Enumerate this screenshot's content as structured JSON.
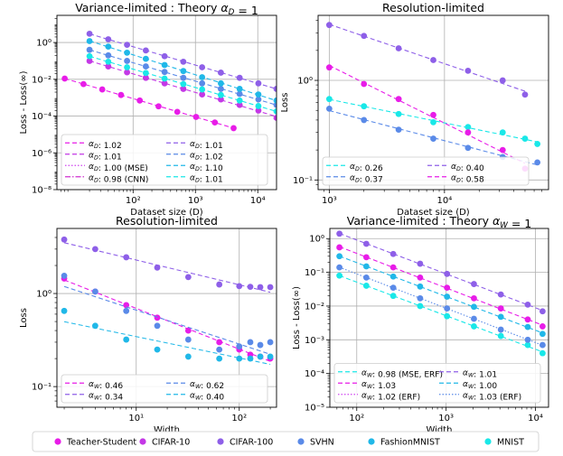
{
  "chart_data": [
    {
      "type": "scatter",
      "title": "Variance-limited : Theory α_D = 1",
      "xlabel": "Dataset size (D)",
      "ylabel": "Loss - Loss(∞)",
      "xlog": true,
      "ylog": true,
      "xlim": [
        6,
        20000
      ],
      "ylim": [
        1e-08,
        30
      ],
      "xticks": [
        {
          "v": 100,
          "l": "10²"
        },
        {
          "v": 1000,
          "l": "10³"
        },
        {
          "v": 10000,
          "l": "10⁴"
        }
      ],
      "yticks": [
        {
          "v": 1e-08,
          "l": "10⁻⁸"
        },
        {
          "v": 1e-06,
          "l": "10⁻⁶"
        },
        {
          "v": 0.0001,
          "l": "10⁻⁴"
        },
        {
          "v": 0.01,
          "l": "10⁻²"
        },
        {
          "v": 1,
          "l": "10⁰"
        }
      ],
      "grid": true,
      "legend_loc": "lower-left",
      "legend_cols": 2,
      "series": [
        {
          "name": "α_D: 1.02",
          "color": "#e81ce8",
          "dash": "5,3",
          "points": [
            [
              8,
              0.011
            ],
            [
              16,
              0.0055
            ],
            [
              32,
              0.0028
            ],
            [
              64,
              0.0014
            ],
            [
              128,
              0.0007
            ],
            [
              256,
              0.00034
            ],
            [
              512,
              0.00017
            ],
            [
              1024,
              9e-05
            ],
            [
              2048,
              4.5e-05
            ],
            [
              4096,
              2.2e-05
            ]
          ]
        },
        {
          "name": "α_D: 1.01",
          "color": "#c438e6",
          "dash": "5,3",
          "points": [
            [
              20,
              0.1
            ],
            [
              40,
              0.05
            ],
            [
              80,
              0.024
            ],
            [
              160,
              0.012
            ],
            [
              320,
              0.006
            ],
            [
              640,
              0.003
            ],
            [
              1280,
              0.0015
            ],
            [
              2560,
              0.0008
            ],
            [
              5120,
              0.0004
            ],
            [
              10240,
              0.0002
            ],
            [
              20000,
              8e-05
            ]
          ]
        },
        {
          "name": "α_D: 1.00 (MSE)",
          "color": "#d046f0",
          "dash": "1.5,2",
          "points": []
        },
        {
          "name": "α_D: 0.98 (CNN)",
          "color": "#d030d0",
          "dash": "6,2,1.5,2",
          "points": []
        },
        {
          "name": "α_D: 1.01",
          "color": "#8e5fe8",
          "dash": "5,3",
          "points": [
            [
              20,
              3
            ],
            [
              40,
              1.5
            ],
            [
              80,
              0.75
            ],
            [
              160,
              0.37
            ],
            [
              320,
              0.18
            ],
            [
              640,
              0.09
            ],
            [
              1280,
              0.045
            ],
            [
              2560,
              0.023
            ],
            [
              5120,
              0.012
            ],
            [
              10240,
              0.006
            ],
            [
              20000,
              0.003
            ]
          ]
        },
        {
          "name": "α_D: 1.02",
          "color": "#5a8ae8",
          "dash": "5,3",
          "points": [
            [
              20,
              0.4
            ],
            [
              40,
              0.2
            ],
            [
              80,
              0.1
            ],
            [
              160,
              0.05
            ],
            [
              320,
              0.025
            ],
            [
              640,
              0.012
            ],
            [
              1280,
              0.006
            ],
            [
              2560,
              0.003
            ],
            [
              5120,
              0.0016
            ],
            [
              10240,
              0.0008
            ],
            [
              20000,
              0.0004
            ]
          ]
        },
        {
          "name": "α_D: 1.10",
          "color": "#20b8e8",
          "dash": "5,3",
          "points": [
            [
              20,
              1.2
            ],
            [
              40,
              0.6
            ],
            [
              80,
              0.28
            ],
            [
              160,
              0.13
            ],
            [
              320,
              0.06
            ],
            [
              640,
              0.028
            ],
            [
              1280,
              0.013
            ],
            [
              2560,
              0.006
            ],
            [
              5120,
              0.003
            ],
            [
              10240,
              0.0015
            ],
            [
              20000,
              0.0007
            ]
          ]
        },
        {
          "name": "α_D: 1.01",
          "color": "#19e8e8",
          "dash": "5,3",
          "points": [
            [
              20,
              0.18
            ],
            [
              40,
              0.09
            ],
            [
              80,
              0.045
            ],
            [
              160,
              0.022
            ],
            [
              320,
              0.011
            ],
            [
              640,
              0.0055
            ],
            [
              1280,
              0.0028
            ],
            [
              2560,
              0.0014
            ],
            [
              5120,
              0.0007
            ],
            [
              10240,
              0.00035
            ],
            [
              20000,
              0.00018
            ]
          ]
        }
      ]
    },
    {
      "type": "scatter",
      "title": "Resolution-limited",
      "xlabel": "Dataset size (D)",
      "ylabel": "Loss",
      "xlog": true,
      "ylog": true,
      "xlim": [
        800,
        80000
      ],
      "ylim": [
        0.08,
        4.5
      ],
      "xticks": [
        {
          "v": 1000,
          "l": "10³"
        },
        {
          "v": 10000,
          "l": "10⁴"
        }
      ],
      "yticks": [
        {
          "v": 0.1,
          "l": "10⁻¹"
        },
        {
          "v": 1,
          "l": "10⁰"
        }
      ],
      "grid": true,
      "legend_loc": "lower-left",
      "legend_cols": 2,
      "series": [
        {
          "name": "α_D: 0.26",
          "color": "#19e8e8",
          "dash": "5,3",
          "points": [
            [
              1000,
              0.65
            ],
            [
              2000,
              0.55
            ],
            [
              4000,
              0.46
            ],
            [
              8000,
              0.38
            ],
            [
              16000,
              0.34
            ],
            [
              32000,
              0.3
            ],
            [
              50000,
              0.26
            ],
            [
              64000,
              0.23
            ]
          ]
        },
        {
          "name": "α_D: 0.37",
          "color": "#5a8ae8",
          "dash": "5,3",
          "points": [
            [
              1000,
              0.52
            ],
            [
              2000,
              0.4
            ],
            [
              4000,
              0.32
            ],
            [
              8000,
              0.26
            ],
            [
              16000,
              0.21
            ],
            [
              32000,
              0.17
            ],
            [
              64000,
              0.15
            ]
          ]
        },
        {
          "name": "α_D: 0.40",
          "color": "#8e5fe8",
          "dash": "5,3",
          "points": [
            [
              1000,
              3.6
            ],
            [
              2000,
              2.8
            ],
            [
              4000,
              2.1
            ],
            [
              8000,
              1.6
            ],
            [
              16000,
              1.25
            ],
            [
              32000,
              1.0
            ],
            [
              50000,
              0.72
            ]
          ]
        },
        {
          "name": "α_D: 0.58",
          "color": "#e81ce8",
          "dash": "5,3",
          "points": [
            [
              1000,
              1.35
            ],
            [
              2000,
              0.92
            ],
            [
              4000,
              0.65
            ],
            [
              8000,
              0.45
            ],
            [
              16000,
              0.3
            ],
            [
              32000,
              0.2
            ],
            [
              50000,
              0.13
            ]
          ]
        }
      ]
    },
    {
      "type": "scatter",
      "title": "Resolution-limited",
      "xlabel": "Width",
      "ylabel": "Loss",
      "xlog": true,
      "ylog": true,
      "xlim": [
        1.7,
        230
      ],
      "ylim": [
        0.06,
        5
      ],
      "xticks": [
        {
          "v": 10,
          "l": "10¹"
        },
        {
          "v": 100,
          "l": "10²"
        }
      ],
      "yticks": [
        {
          "v": 0.1,
          "l": "10⁻¹"
        },
        {
          "v": 1,
          "l": "10⁰"
        }
      ],
      "grid": true,
      "legend_loc": "lower-left",
      "legend_cols": 2,
      "series": [
        {
          "name": "α_W: 0.46",
          "color": "#e81ce8",
          "dash": "5,3",
          "points": [
            [
              2,
              1.45
            ],
            [
              4,
              1.05
            ],
            [
              8,
              0.75
            ],
            [
              16,
              0.55
            ],
            [
              32,
              0.4
            ],
            [
              64,
              0.3
            ],
            [
              100,
              0.25
            ],
            [
              128,
              0.22
            ],
            [
              160,
              0.21
            ],
            [
              200,
              0.2
            ]
          ]
        },
        {
          "name": "α_W: 0.34",
          "color": "#8e5fe8",
          "dash": "5,3",
          "points": [
            [
              2,
              3.8
            ],
            [
              4,
              3.0
            ],
            [
              8,
              2.45
            ],
            [
              16,
              1.9
            ],
            [
              32,
              1.5
            ],
            [
              64,
              1.25
            ],
            [
              100,
              1.2
            ],
            [
              128,
              1.18
            ],
            [
              160,
              1.17
            ],
            [
              200,
              1.17
            ]
          ]
        },
        {
          "name": "α_W: 0.62",
          "color": "#5a8ae8",
          "dash": "5,3",
          "points": [
            [
              2,
              1.55
            ],
            [
              4,
              1.05
            ],
            [
              8,
              0.65
            ],
            [
              16,
              0.45
            ],
            [
              32,
              0.32
            ],
            [
              64,
              0.25
            ],
            [
              100,
              0.27
            ],
            [
              128,
              0.3
            ],
            [
              160,
              0.28
            ],
            [
              200,
              0.3
            ]
          ]
        },
        {
          "name": "α_W: 0.40",
          "color": "#20b8e8",
          "dash": "5,3",
          "points": [
            [
              2,
              0.65
            ],
            [
              4,
              0.45
            ],
            [
              8,
              0.32
            ],
            [
              16,
              0.25
            ],
            [
              32,
              0.21
            ],
            [
              64,
              0.2
            ],
            [
              100,
              0.2
            ],
            [
              128,
              0.2
            ],
            [
              160,
              0.21
            ],
            [
              200,
              0.21
            ]
          ]
        }
      ]
    },
    {
      "type": "scatter",
      "title": "Variance-limited : Theory α_W = 1",
      "xlabel": "Width",
      "ylabel": "Loss - Loss(∞)",
      "xlog": true,
      "ylog": true,
      "xlim": [
        50,
        14000
      ],
      "ylim": [
        1e-05,
        2
      ],
      "xticks": [
        {
          "v": 100,
          "l": "10²"
        },
        {
          "v": 1000,
          "l": "10³"
        },
        {
          "v": 10000,
          "l": "10⁴"
        }
      ],
      "yticks": [
        {
          "v": 1e-05,
          "l": "10⁻⁵"
        },
        {
          "v": 0.0001,
          "l": "10⁻⁴"
        },
        {
          "v": 0.001,
          "l": "10⁻³"
        },
        {
          "v": 0.01,
          "l": "10⁻²"
        },
        {
          "v": 0.1,
          "l": "10⁻¹"
        },
        {
          "v": 1,
          "l": "10⁰"
        }
      ],
      "grid": true,
      "legend_loc": "lower-left",
      "legend_cols": 2,
      "series": [
        {
          "name": "α_W: 0.98 (MSE, ERF)",
          "color": "#19e8e8",
          "dash": "5,3",
          "points": [
            [
              64,
              0.08
            ],
            [
              128,
              0.04
            ],
            [
              256,
              0.02
            ],
            [
              512,
              0.01
            ],
            [
              1024,
              0.005
            ],
            [
              2048,
              0.0025
            ],
            [
              4096,
              0.0013
            ],
            [
              8192,
              0.0007
            ],
            [
              12000,
              0.0004
            ]
          ]
        },
        {
          "name": "α_W: 1.03",
          "color": "#e81ce8",
          "dash": "5,3",
          "points": [
            [
              64,
              0.55
            ],
            [
              128,
              0.28
            ],
            [
              256,
              0.14
            ],
            [
              512,
              0.07
            ],
            [
              1024,
              0.035
            ],
            [
              2048,
              0.017
            ],
            [
              4096,
              0.0085
            ],
            [
              8192,
              0.004
            ],
            [
              12000,
              0.0025
            ]
          ]
        },
        {
          "name": "α_W: 1.02 (ERF)",
          "color": "#d046f0",
          "dash": "1.5,2",
          "points": []
        },
        {
          "name": "α_W: 1.01",
          "color": "#8e5fe8",
          "dash": "5,3",
          "points": [
            [
              64,
              1.4
            ],
            [
              128,
              0.7
            ],
            [
              256,
              0.35
            ],
            [
              512,
              0.18
            ],
            [
              1024,
              0.09
            ],
            [
              2048,
              0.045
            ],
            [
              4096,
              0.022
            ],
            [
              8192,
              0.011
            ],
            [
              12000,
              0.007
            ]
          ]
        },
        {
          "name": "α_W: 1.00",
          "color": "#20b8e8",
          "dash": "5,3",
          "points": [
            [
              64,
              0.3
            ],
            [
              128,
              0.15
            ],
            [
              256,
              0.075
            ],
            [
              512,
              0.038
            ],
            [
              1024,
              0.019
            ],
            [
              2048,
              0.0095
            ],
            [
              4096,
              0.0048
            ],
            [
              8192,
              0.0024
            ],
            [
              12000,
              0.0015
            ]
          ]
        },
        {
          "name": "α_W: 1.03 (ERF)",
          "color": "#5a8ae8",
          "dash": "1.5,2",
          "points": [
            [
              64,
              0.14
            ],
            [
              128,
              0.07
            ],
            [
              256,
              0.035
            ],
            [
              512,
              0.017
            ],
            [
              1024,
              0.0085
            ],
            [
              2048,
              0.0042
            ],
            [
              4096,
              0.002
            ],
            [
              8192,
              0.001
            ],
            [
              12000,
              0.0007
            ]
          ]
        }
      ]
    }
  ],
  "legend": [
    {
      "name": "Teacher-Student",
      "color": "#e81ce8"
    },
    {
      "name": "CIFAR-10",
      "color": "#c438e6"
    },
    {
      "name": "CIFAR-100",
      "color": "#8e5fe8"
    },
    {
      "name": "SVHN",
      "color": "#5a8ae8"
    },
    {
      "name": "FashionMNIST",
      "color": "#20b8e8"
    },
    {
      "name": "MNIST",
      "color": "#19e8e8"
    }
  ]
}
